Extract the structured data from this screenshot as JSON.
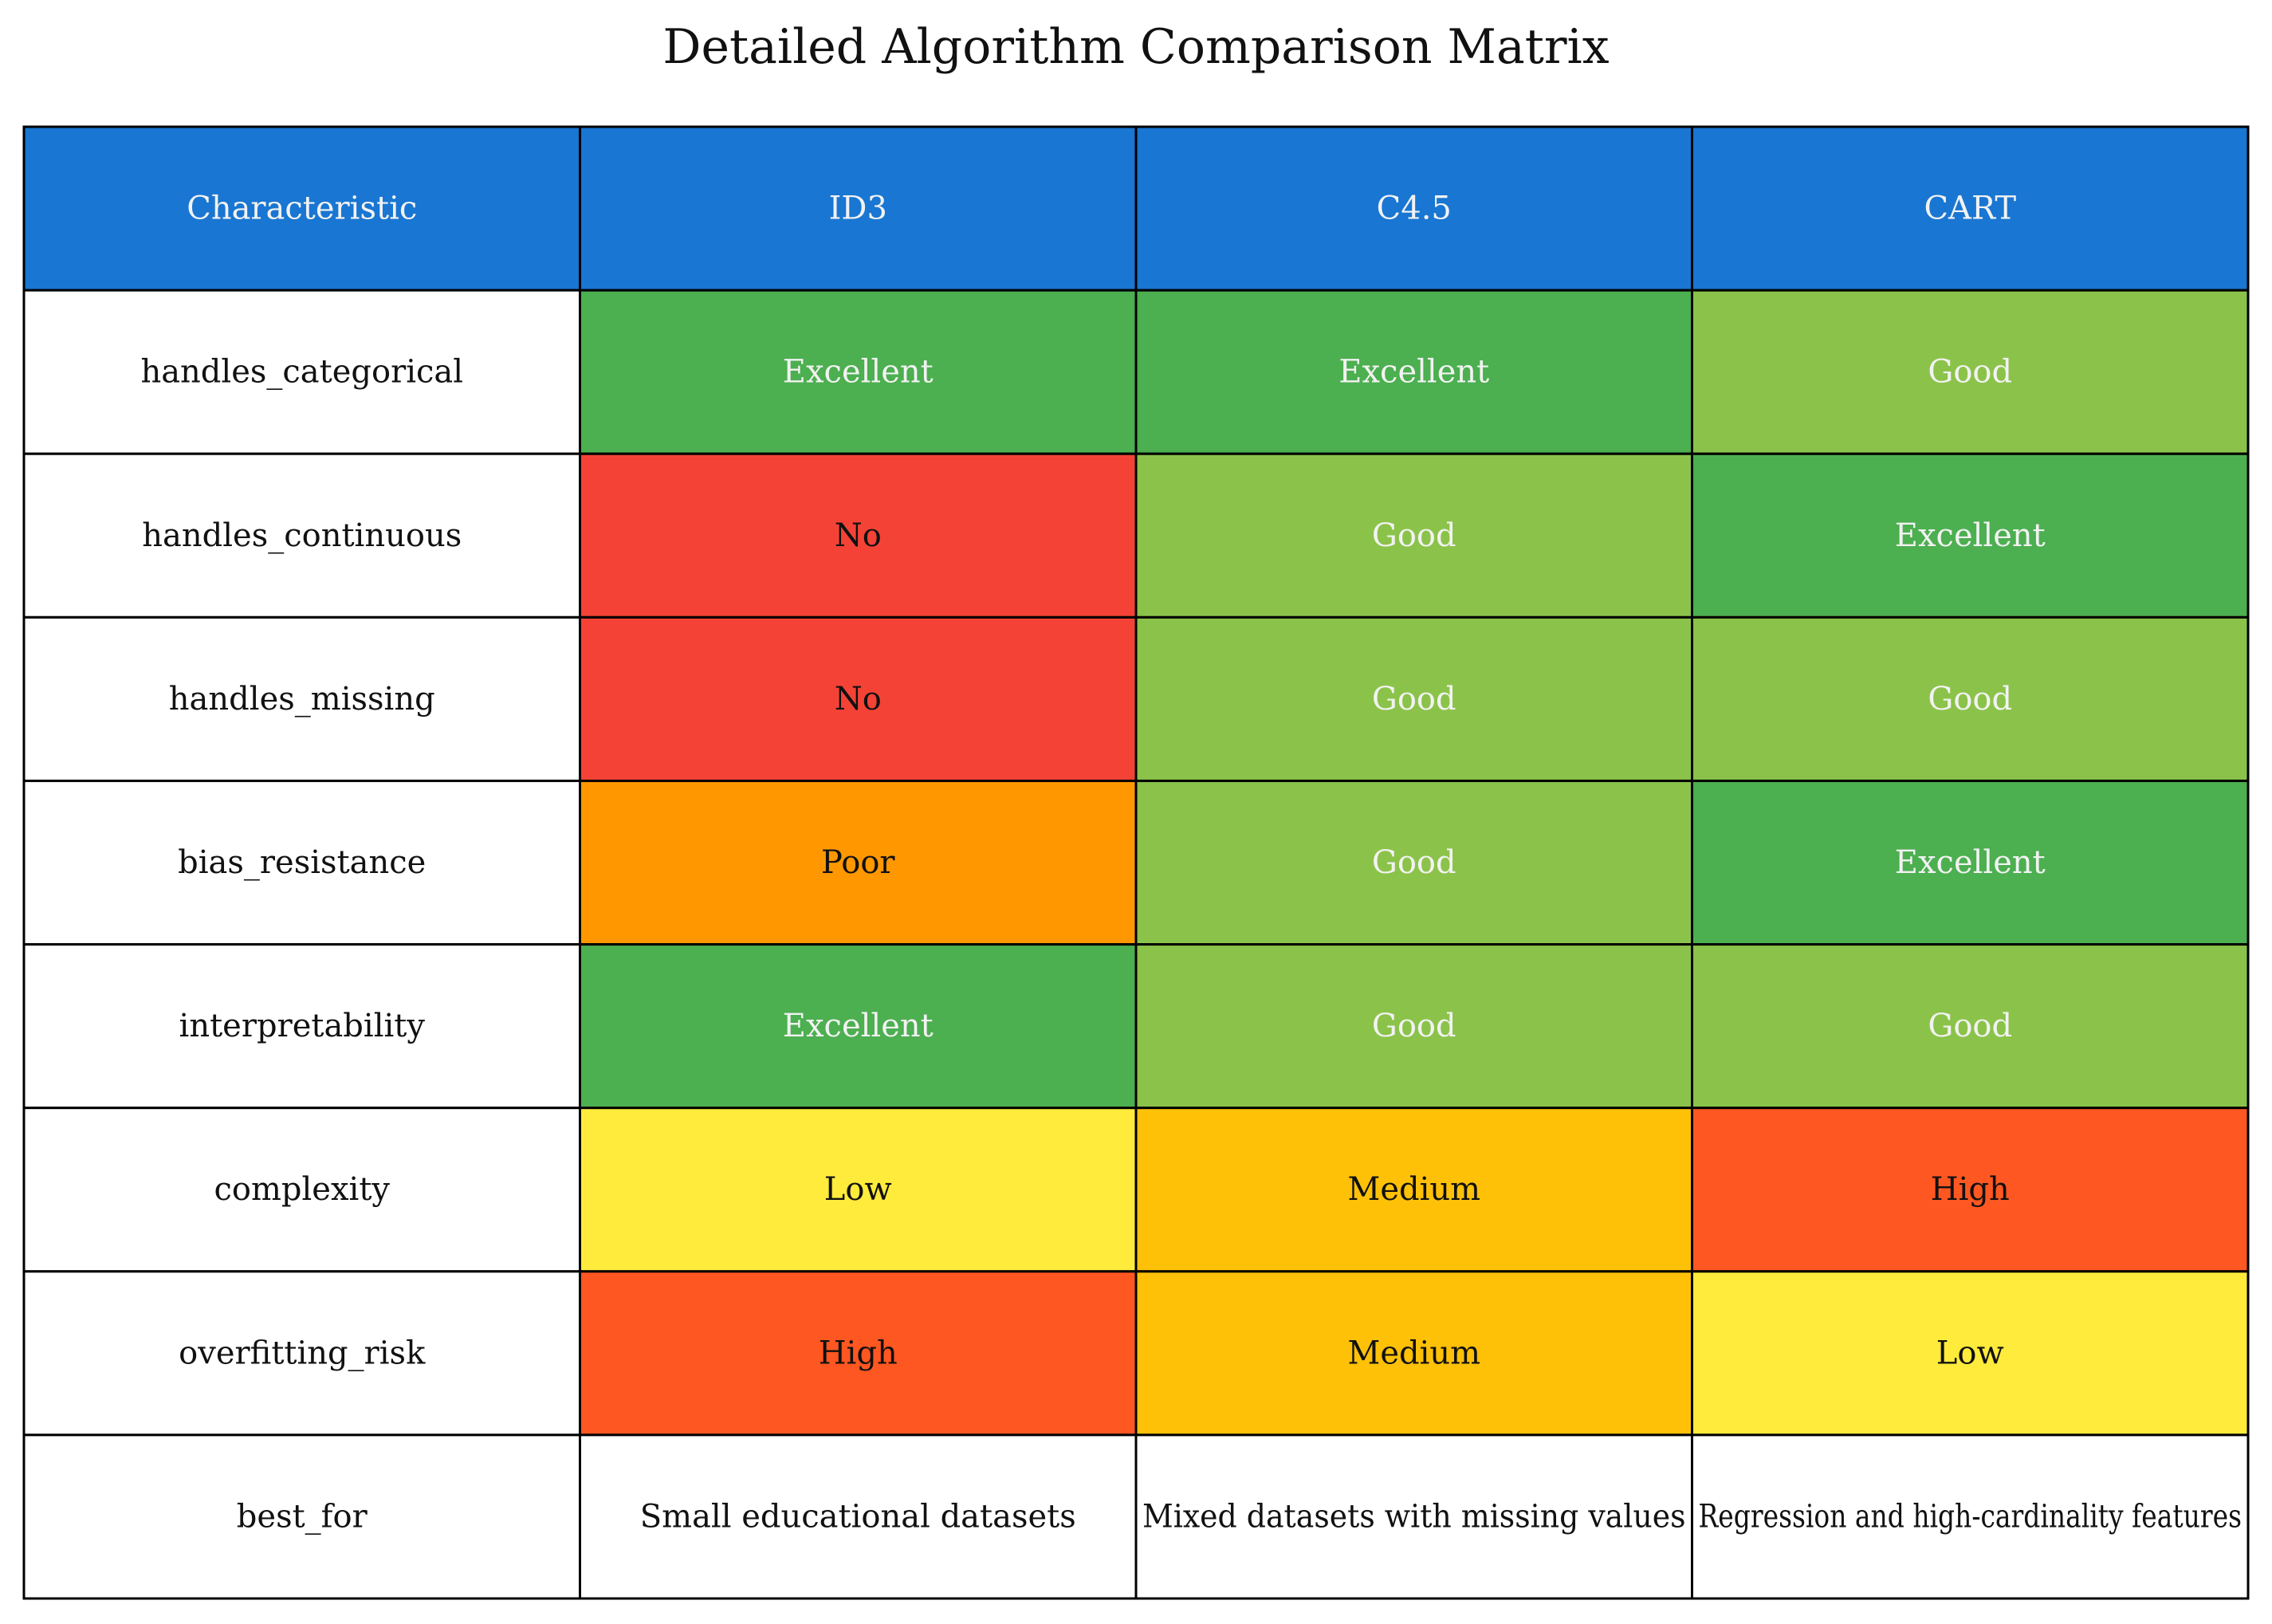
{
  "chart_data": {
    "type": "table",
    "title": "Detailed Algorithm Comparison Matrix",
    "columns": [
      "Characteristic",
      "ID3",
      "C4.5",
      "CART"
    ],
    "rows": [
      {
        "label": "handles_categorical",
        "values": [
          "Excellent",
          "Excellent",
          "Good"
        ]
      },
      {
        "label": "handles_continuous",
        "values": [
          "No",
          "Good",
          "Excellent"
        ]
      },
      {
        "label": "handles_missing",
        "values": [
          "No",
          "Good",
          "Good"
        ]
      },
      {
        "label": "bias_resistance",
        "values": [
          "Poor",
          "Good",
          "Excellent"
        ]
      },
      {
        "label": "interpretability",
        "values": [
          "Excellent",
          "Good",
          "Good"
        ]
      },
      {
        "label": "complexity",
        "values": [
          "Low",
          "Medium",
          "High"
        ]
      },
      {
        "label": "overfitting_risk",
        "values": [
          "High",
          "Medium",
          "Low"
        ]
      },
      {
        "label": "best_for",
        "values": [
          "Small educational datasets",
          "Mixed datasets with missing values",
          "Regression and high-cardinality features"
        ]
      }
    ],
    "colors": {
      "header_bg": "#1976D2",
      "header_text": "#F2F2F2",
      "label_bg": "#FFFFFF",
      "border": "#000000",
      "ratings": {
        "Excellent": {
          "bg": "#4CAF50",
          "text": "#F2F2F2"
        },
        "Good": {
          "bg": "#8BC34A",
          "text": "#F2F2F2"
        },
        "No": {
          "bg": "#F44336",
          "text": "#111111"
        },
        "Poor": {
          "bg": "#FF9800",
          "text": "#111111"
        },
        "Low": {
          "bg": "#FFEB3B",
          "text": "#111111"
        },
        "Medium": {
          "bg": "#FFC107",
          "text": "#111111"
        },
        "High": {
          "bg": "#FF5722",
          "text": "#111111"
        }
      }
    }
  }
}
